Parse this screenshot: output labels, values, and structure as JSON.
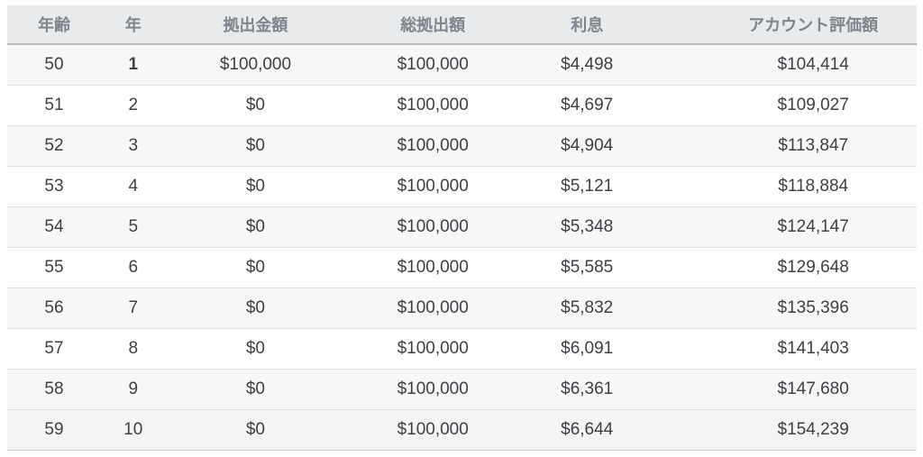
{
  "colors": {
    "header_bg": "#e9eaeb",
    "header_text": "#7e868d",
    "row_stripe": "#f7f7f8",
    "last_row_bg": "#f4f4f5",
    "body_text": "#3d4044",
    "header_border": "#b8bbbe",
    "row_border": "#dfe0e1"
  },
  "table": {
    "columns": [
      {
        "key": "age",
        "label": "年齢"
      },
      {
        "key": "year",
        "label": "年"
      },
      {
        "key": "contribution",
        "label": "拠出金額"
      },
      {
        "key": "total_contribution",
        "label": "総拠出額"
      },
      {
        "key": "interest",
        "label": "利息"
      },
      {
        "key": "account_value",
        "label": "アカウント評価額"
      }
    ],
    "rows": [
      {
        "age": "50",
        "year": "1",
        "contribution": "$100,000",
        "total_contribution": "$100,000",
        "interest": "$4,498",
        "account_value": "$104,414"
      },
      {
        "age": "51",
        "year": "2",
        "contribution": "$0",
        "total_contribution": "$100,000",
        "interest": "$4,697",
        "account_value": "$109,027"
      },
      {
        "age": "52",
        "year": "3",
        "contribution": "$0",
        "total_contribution": "$100,000",
        "interest": "$4,904",
        "account_value": "$113,847"
      },
      {
        "age": "53",
        "year": "4",
        "contribution": "$0",
        "total_contribution": "$100,000",
        "interest": "$5,121",
        "account_value": "$118,884"
      },
      {
        "age": "54",
        "year": "5",
        "contribution": "$0",
        "total_contribution": "$100,000",
        "interest": "$5,348",
        "account_value": "$124,147"
      },
      {
        "age": "55",
        "year": "6",
        "contribution": "$0",
        "total_contribution": "$100,000",
        "interest": "$5,585",
        "account_value": "$129,648"
      },
      {
        "age": "56",
        "year": "7",
        "contribution": "$0",
        "total_contribution": "$100,000",
        "interest": "$5,832",
        "account_value": "$135,396"
      },
      {
        "age": "57",
        "year": "8",
        "contribution": "$0",
        "total_contribution": "$100,000",
        "interest": "$6,091",
        "account_value": "$141,403"
      },
      {
        "age": "58",
        "year": "9",
        "contribution": "$0",
        "total_contribution": "$100,000",
        "interest": "$6,361",
        "account_value": "$147,680"
      },
      {
        "age": "59",
        "year": "10",
        "contribution": "$0",
        "total_contribution": "$100,000",
        "interest": "$6,644",
        "account_value": "$154,239"
      }
    ]
  }
}
